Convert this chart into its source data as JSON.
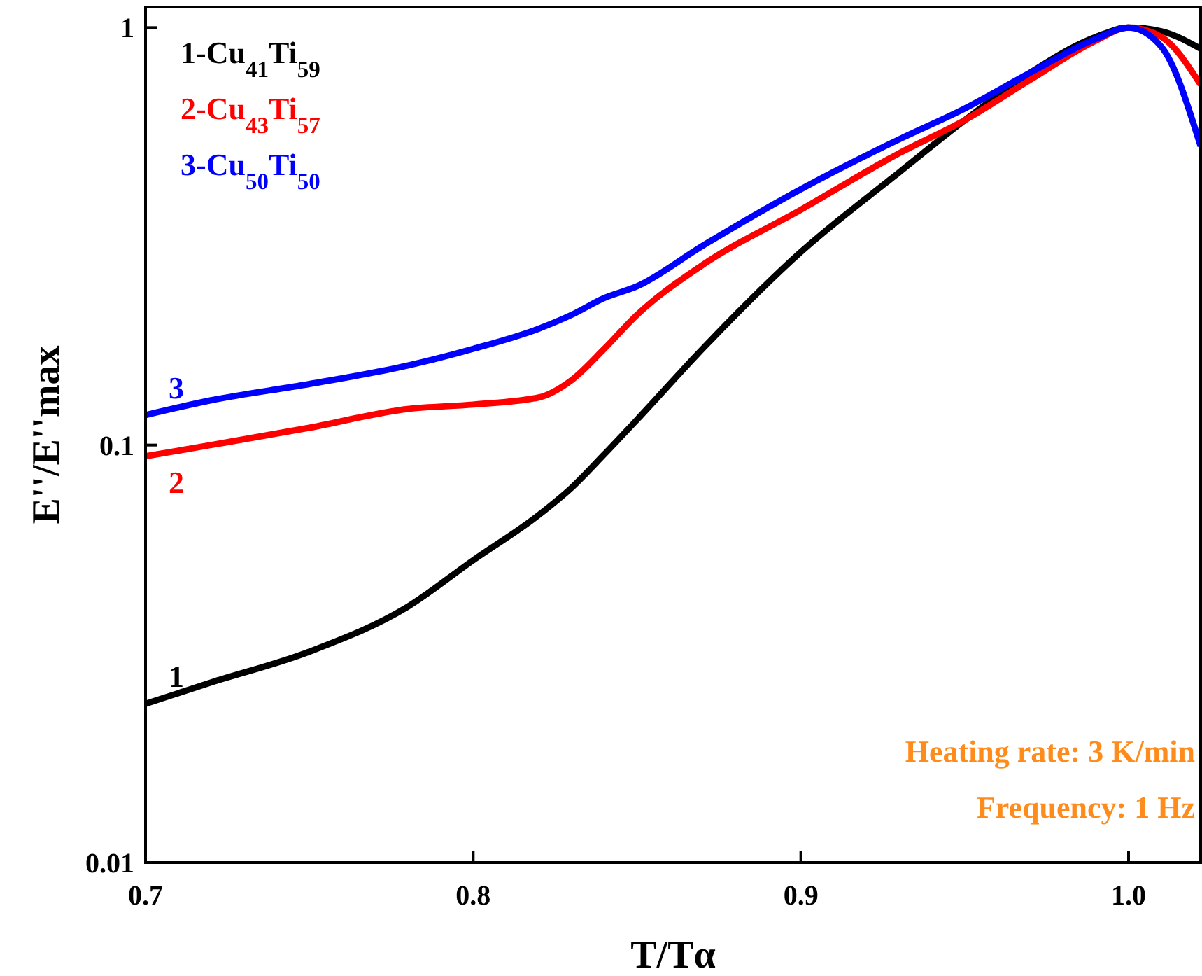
{
  "chart_data": {
    "type": "line",
    "xlabel": "T/Tα",
    "ylabel": "E''/E''max",
    "log": "y",
    "xlim": [
      0.7,
      1.022
    ],
    "ylim": [
      0.01,
      1.12
    ],
    "xticks": [
      0.7,
      0.8,
      0.9,
      {
        "value": 1,
        "label": "1.0"
      }
    ],
    "yticks": [
      0.01,
      0.1,
      1
    ],
    "grid": false,
    "legend": "top left",
    "marker": "none",
    "line_style": "solid",
    "x": [
      0.7,
      0.72,
      0.75,
      0.78,
      0.8,
      0.82,
      0.83,
      0.84,
      0.85,
      0.87,
      0.9,
      0.93,
      0.95,
      0.97,
      0.99,
      1.0,
      1.01,
      1.022
    ],
    "series": [
      {
        "name": "1-Cu$_{41}$Ti$_{59}$",
        "color": "#000000",
        "values": [
          0.024,
          0.027,
          0.032,
          0.041,
          0.053,
          0.068,
          0.079,
          0.095,
          0.115,
          0.17,
          0.29,
          0.45,
          0.6,
          0.78,
          0.95,
          1,
          0.98,
          0.89
        ]
      },
      {
        "name": "2-Cu$_{43}$Ti$_{57}$",
        "color": "#ff0000",
        "values": [
          0.094,
          0.1,
          0.11,
          0.122,
          0.125,
          0.13,
          0.143,
          0.17,
          0.205,
          0.27,
          0.366,
          0.5,
          0.6,
          0.75,
          0.93,
          1,
          0.95,
          0.73
        ]
      },
      {
        "name": "3-Cu$_{50}$Ti$_{50}$",
        "color": "#0000ff",
        "values": [
          0.118,
          0.128,
          0.14,
          0.155,
          0.17,
          0.19,
          0.205,
          0.225,
          0.24,
          0.3,
          0.41,
          0.54,
          0.64,
          0.78,
          0.94,
          1,
          0.9,
          0.52
        ]
      }
    ],
    "annotations": [
      "1",
      "2",
      "3",
      "Heating rate: 3 K/min",
      "Frequency: 1 Hz"
    ]
  }
}
